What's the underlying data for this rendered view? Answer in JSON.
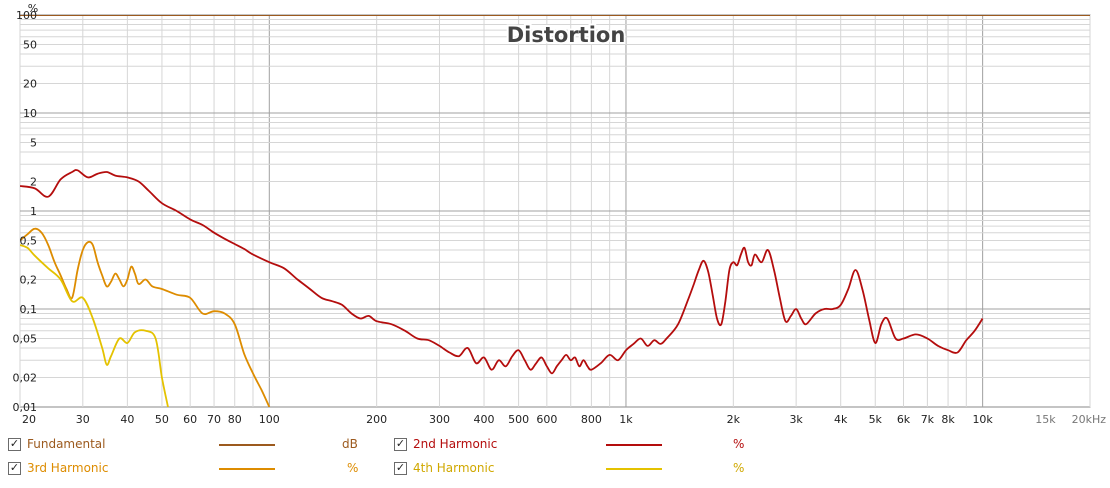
{
  "chart_data": {
    "type": "line",
    "title": "Distortion",
    "ylabel": "%",
    "x_scale": "log",
    "y_scale": "log",
    "xlim": [
      20,
      20000
    ],
    "ylim": [
      0.01,
      100
    ],
    "grid": true,
    "x_ticks": [
      {
        "value": 20,
        "label": "20"
      },
      {
        "value": 30,
        "label": "30"
      },
      {
        "value": 40,
        "label": "40"
      },
      {
        "value": 50,
        "label": "50"
      },
      {
        "value": 60,
        "label": "60"
      },
      {
        "value": 70,
        "label": "70"
      },
      {
        "value": 80,
        "label": "80"
      },
      {
        "value": 100,
        "label": "100"
      },
      {
        "value": 200,
        "label": "200"
      },
      {
        "value": 300,
        "label": "300"
      },
      {
        "value": 400,
        "label": "400"
      },
      {
        "value": 500,
        "label": "500"
      },
      {
        "value": 600,
        "label": "600"
      },
      {
        "value": 800,
        "label": "800"
      },
      {
        "value": 1000,
        "label": "1k"
      },
      {
        "value": 2000,
        "label": "2k"
      },
      {
        "value": 3000,
        "label": "3k"
      },
      {
        "value": 4000,
        "label": "4k"
      },
      {
        "value": 5000,
        "label": "5k"
      },
      {
        "value": 6000,
        "label": "6k"
      },
      {
        "value": 7000,
        "label": "7k"
      },
      {
        "value": 8000,
        "label": "8k"
      },
      {
        "value": 10000,
        "label": "10k"
      },
      {
        "value": 15000,
        "label": "15k"
      },
      {
        "value": 20000,
        "label": "20kHz"
      }
    ],
    "y_ticks": [
      {
        "value": 100,
        "label": "100"
      },
      {
        "value": 50,
        "label": "50"
      },
      {
        "value": 20,
        "label": "20"
      },
      {
        "value": 10,
        "label": "10"
      },
      {
        "value": 5,
        "label": "5"
      },
      {
        "value": 2,
        "label": "2"
      },
      {
        "value": 1,
        "label": "1"
      },
      {
        "value": 0.5,
        "label": "0,5"
      },
      {
        "value": 0.2,
        "label": "0,2"
      },
      {
        "value": 0.1,
        "label": "0,1"
      },
      {
        "value": 0.05,
        "label": "0,05"
      },
      {
        "value": 0.02,
        "label": "0,02"
      },
      {
        "value": 0.01,
        "label": "0,01"
      }
    ],
    "series": [
      {
        "name": "Fundamental",
        "unit": "dB",
        "color": "#9c5a1e",
        "points": [
          [
            20,
            100
          ],
          [
            20000,
            100
          ]
        ]
      },
      {
        "name": "2nd Harmonic",
        "unit": "%",
        "color": "#b40d0d",
        "points": [
          [
            20,
            1.8
          ],
          [
            22,
            1.7
          ],
          [
            24,
            1.4
          ],
          [
            26,
            2.1
          ],
          [
            28,
            2.5
          ],
          [
            29,
            2.6
          ],
          [
            31,
            2.2
          ],
          [
            33,
            2.4
          ],
          [
            35,
            2.5
          ],
          [
            37,
            2.3
          ],
          [
            40,
            2.2
          ],
          [
            43,
            2.0
          ],
          [
            46,
            1.6
          ],
          [
            50,
            1.2
          ],
          [
            55,
            1.0
          ],
          [
            60,
            0.82
          ],
          [
            65,
            0.72
          ],
          [
            70,
            0.6
          ],
          [
            75,
            0.52
          ],
          [
            80,
            0.46
          ],
          [
            85,
            0.41
          ],
          [
            90,
            0.36
          ],
          [
            100,
            0.3
          ],
          [
            110,
            0.26
          ],
          [
            120,
            0.2
          ],
          [
            130,
            0.16
          ],
          [
            140,
            0.13
          ],
          [
            150,
            0.12
          ],
          [
            160,
            0.11
          ],
          [
            170,
            0.09
          ],
          [
            180,
            0.08
          ],
          [
            190,
            0.085
          ],
          [
            200,
            0.075
          ],
          [
            220,
            0.07
          ],
          [
            240,
            0.06
          ],
          [
            260,
            0.05
          ],
          [
            280,
            0.048
          ],
          [
            300,
            0.042
          ],
          [
            320,
            0.036
          ],
          [
            340,
            0.033
          ],
          [
            360,
            0.04
          ],
          [
            380,
            0.028
          ],
          [
            400,
            0.032
          ],
          [
            420,
            0.024
          ],
          [
            440,
            0.03
          ],
          [
            460,
            0.026
          ],
          [
            480,
            0.033
          ],
          [
            500,
            0.038
          ],
          [
            520,
            0.03
          ],
          [
            540,
            0.024
          ],
          [
            560,
            0.028
          ],
          [
            580,
            0.032
          ],
          [
            600,
            0.026
          ],
          [
            620,
            0.022
          ],
          [
            640,
            0.026
          ],
          [
            660,
            0.03
          ],
          [
            680,
            0.034
          ],
          [
            700,
            0.03
          ],
          [
            720,
            0.032
          ],
          [
            740,
            0.026
          ],
          [
            760,
            0.03
          ],
          [
            780,
            0.026
          ],
          [
            800,
            0.024
          ],
          [
            850,
            0.028
          ],
          [
            900,
            0.034
          ],
          [
            950,
            0.03
          ],
          [
            1000,
            0.038
          ],
          [
            1050,
            0.044
          ],
          [
            1100,
            0.05
          ],
          [
            1150,
            0.042
          ],
          [
            1200,
            0.048
          ],
          [
            1250,
            0.044
          ],
          [
            1300,
            0.05
          ],
          [
            1400,
            0.07
          ],
          [
            1500,
            0.13
          ],
          [
            1550,
            0.18
          ],
          [
            1600,
            0.25
          ],
          [
            1650,
            0.31
          ],
          [
            1700,
            0.24
          ],
          [
            1750,
            0.14
          ],
          [
            1800,
            0.08
          ],
          [
            1850,
            0.07
          ],
          [
            1900,
            0.12
          ],
          [
            1950,
            0.25
          ],
          [
            2000,
            0.3
          ],
          [
            2050,
            0.28
          ],
          [
            2100,
            0.36
          ],
          [
            2150,
            0.42
          ],
          [
            2200,
            0.3
          ],
          [
            2250,
            0.28
          ],
          [
            2300,
            0.36
          ],
          [
            2400,
            0.3
          ],
          [
            2500,
            0.4
          ],
          [
            2600,
            0.25
          ],
          [
            2700,
            0.13
          ],
          [
            2800,
            0.075
          ],
          [
            2900,
            0.085
          ],
          [
            3000,
            0.1
          ],
          [
            3100,
            0.08
          ],
          [
            3200,
            0.07
          ],
          [
            3400,
            0.09
          ],
          [
            3600,
            0.1
          ],
          [
            3800,
            0.1
          ],
          [
            4000,
            0.11
          ],
          [
            4200,
            0.16
          ],
          [
            4400,
            0.25
          ],
          [
            4600,
            0.16
          ],
          [
            4800,
            0.08
          ],
          [
            5000,
            0.045
          ],
          [
            5200,
            0.07
          ],
          [
            5400,
            0.08
          ],
          [
            5700,
            0.05
          ],
          [
            6000,
            0.05
          ],
          [
            6500,
            0.055
          ],
          [
            7000,
            0.05
          ],
          [
            7500,
            0.042
          ],
          [
            8000,
            0.038
          ],
          [
            8500,
            0.036
          ],
          [
            9000,
            0.048
          ],
          [
            9500,
            0.06
          ],
          [
            10000,
            0.08
          ]
        ]
      },
      {
        "name": "3rd Harmonic",
        "unit": "%",
        "color": "#dd8c00",
        "points": [
          [
            20,
            0.5
          ],
          [
            21,
            0.58
          ],
          [
            22,
            0.66
          ],
          [
            23,
            0.6
          ],
          [
            24,
            0.45
          ],
          [
            25,
            0.3
          ],
          [
            26,
            0.22
          ],
          [
            27,
            0.16
          ],
          [
            28,
            0.13
          ],
          [
            29,
            0.25
          ],
          [
            30,
            0.4
          ],
          [
            31,
            0.48
          ],
          [
            32,
            0.45
          ],
          [
            33,
            0.3
          ],
          [
            34,
            0.22
          ],
          [
            35,
            0.17
          ],
          [
            36,
            0.19
          ],
          [
            37,
            0.23
          ],
          [
            38,
            0.2
          ],
          [
            39,
            0.17
          ],
          [
            40,
            0.2
          ],
          [
            41,
            0.27
          ],
          [
            42,
            0.23
          ],
          [
            43,
            0.18
          ],
          [
            45,
            0.2
          ],
          [
            47,
            0.17
          ],
          [
            50,
            0.16
          ],
          [
            55,
            0.14
          ],
          [
            60,
            0.13
          ],
          [
            65,
            0.09
          ],
          [
            70,
            0.095
          ],
          [
            75,
            0.09
          ],
          [
            80,
            0.07
          ],
          [
            85,
            0.035
          ],
          [
            90,
            0.022
          ],
          [
            95,
            0.015
          ],
          [
            100,
            0.01
          ]
        ]
      },
      {
        "name": "4th Harmonic",
        "unit": "%",
        "color": "#e4c200",
        "points": [
          [
            20,
            0.45
          ],
          [
            21,
            0.42
          ],
          [
            22,
            0.35
          ],
          [
            24,
            0.26
          ],
          [
            26,
            0.2
          ],
          [
            28,
            0.12
          ],
          [
            30,
            0.13
          ],
          [
            32,
            0.08
          ],
          [
            34,
            0.04
          ],
          [
            35,
            0.027
          ],
          [
            36,
            0.033
          ],
          [
            38,
            0.05
          ],
          [
            40,
            0.045
          ],
          [
            42,
            0.058
          ],
          [
            45,
            0.06
          ],
          [
            48,
            0.05
          ],
          [
            50,
            0.02
          ],
          [
            52,
            0.01
          ]
        ]
      }
    ]
  },
  "legend": {
    "items": [
      {
        "label": "Fundamental",
        "unit": "dB",
        "color": "#9c5a1e",
        "checked": "✓"
      },
      {
        "label": "2nd Harmonic",
        "unit": "%",
        "color": "#b40d0d",
        "checked": "✓"
      },
      {
        "label": "3rd Harmonic",
        "unit": "%",
        "color": "#dd8c00",
        "checked": "✓"
      },
      {
        "label": "4th Harmonic",
        "unit": "%",
        "color": "#e4c200",
        "checked": "✓"
      }
    ]
  }
}
